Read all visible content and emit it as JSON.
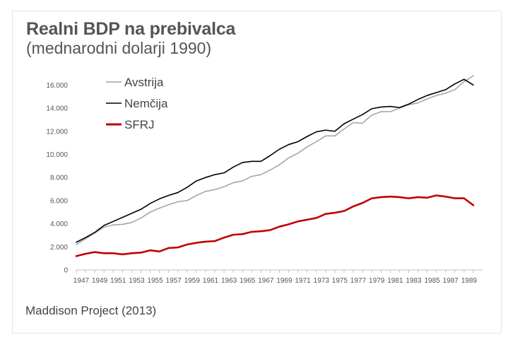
{
  "chart_data": {
    "type": "line",
    "title": "Realni BDP na prebivalca",
    "subtitle": "(mednarodni dolarji 1990)",
    "source": "Maddison Project (2013)",
    "xlabel": "",
    "ylabel": "",
    "ylim": [
      0,
      17000
    ],
    "xlim": [
      1947,
      1991
    ],
    "yticks": [
      0,
      2000,
      4000,
      6000,
      8000,
      10000,
      12000,
      14000,
      16000
    ],
    "ytick_labels": [
      "0",
      "2.000",
      "4.000",
      "6.000",
      "8.000",
      "10.000",
      "12.000",
      "14.000",
      "16.000"
    ],
    "xticks": [
      1947,
      1949,
      1951,
      1953,
      1955,
      1957,
      1959,
      1961,
      1963,
      1965,
      1967,
      1969,
      1971,
      1973,
      1975,
      1977,
      1979,
      1981,
      1983,
      1985,
      1987,
      1989
    ],
    "xtick_labels": [
      "1947",
      "1949",
      "1951",
      "1953",
      "1955",
      "1957",
      "1959",
      "1961",
      "1963",
      "1965",
      "1967",
      "1969",
      "1971",
      "1973",
      "1975",
      "1977",
      "1979",
      "1981",
      "1983",
      "1985",
      "1987",
      "1989"
    ],
    "grid": false,
    "legend_position": "top-left",
    "x": [
      1947,
      1948,
      1949,
      1950,
      1951,
      1952,
      1953,
      1954,
      1955,
      1956,
      1957,
      1958,
      1959,
      1960,
      1961,
      1962,
      1963,
      1964,
      1965,
      1966,
      1967,
      1968,
      1969,
      1970,
      1971,
      1972,
      1973,
      1974,
      1975,
      1976,
      1977,
      1978,
      1979,
      1980,
      1981,
      1982,
      1983,
      1984,
      1985,
      1986,
      1987,
      1988,
      1989,
      1990
    ],
    "series": [
      {
        "name": "Avstrija",
        "color": "#a6a6a6",
        "values": [
          2200,
          2700,
          3200,
          3700,
          3900,
          3950,
          4100,
          4500,
          5000,
          5350,
          5650,
          5900,
          6000,
          6450,
          6800,
          6950,
          7200,
          7550,
          7700,
          8100,
          8250,
          8650,
          9100,
          9700,
          10100,
          10650,
          11100,
          11600,
          11600,
          12200,
          12750,
          12700,
          13400,
          13700,
          13700,
          14000,
          14300,
          14450,
          14800,
          15100,
          15300,
          15600,
          16300,
          16800
        ]
      },
      {
        "name": "Nemčija",
        "color": "#000000",
        "values": [
          2400,
          2800,
          3250,
          3850,
          4200,
          4550,
          4900,
          5250,
          5750,
          6150,
          6450,
          6700,
          7150,
          7700,
          8000,
          8250,
          8400,
          8900,
          9300,
          9400,
          9400,
          9900,
          10450,
          10850,
          11100,
          11550,
          11950,
          12100,
          12000,
          12650,
          13050,
          13450,
          13950,
          14100,
          14150,
          14050,
          14350,
          14750,
          15100,
          15350,
          15600,
          16100,
          16500,
          16000
        ]
      },
      {
        "name": "SFRJ",
        "color": "#c00000",
        "values": [
          1200,
          1400,
          1550,
          1450,
          1450,
          1350,
          1450,
          1500,
          1700,
          1600,
          1900,
          1950,
          2200,
          2350,
          2450,
          2500,
          2800,
          3050,
          3100,
          3300,
          3350,
          3450,
          3750,
          3950,
          4200,
          4350,
          4500,
          4850,
          4950,
          5100,
          5500,
          5800,
          6200,
          6300,
          6350,
          6300,
          6200,
          6300,
          6250,
          6450,
          6350,
          6200,
          6200,
          5600
        ]
      }
    ]
  }
}
